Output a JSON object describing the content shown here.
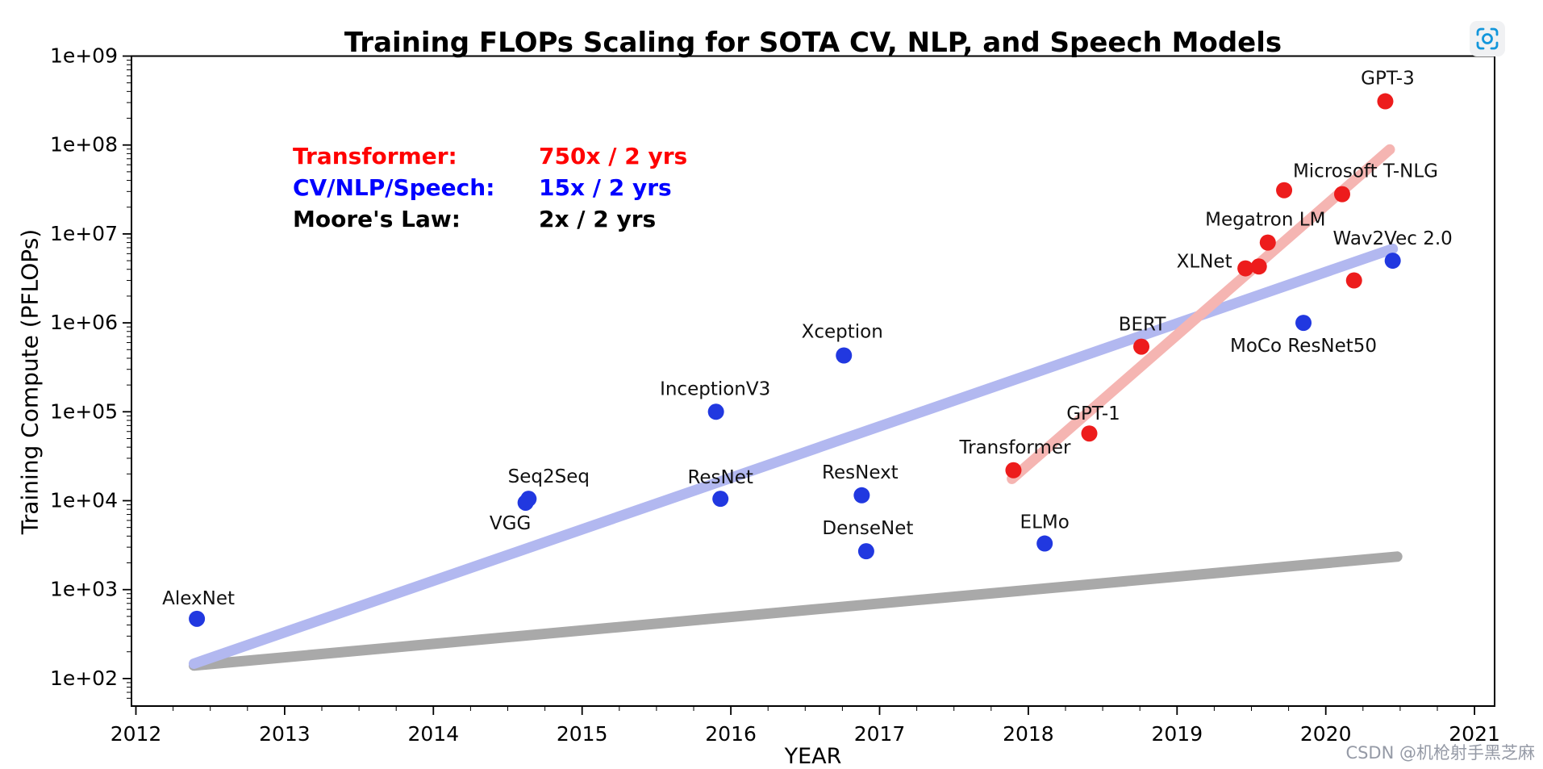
{
  "page": {
    "background": "#ffffff",
    "watermark": "CSDN @机枪射手黑芝麻",
    "watermark_color": "#959aa6",
    "zoom_icon_color": "#1296db"
  },
  "chart_data": {
    "type": "scatter",
    "title": "Training FLOPs Scaling for SOTA CV, NLP, and Speech Models",
    "xlabel": "YEAR",
    "ylabel": "Training Compute (PFLOPs)",
    "grid": false,
    "x_axis": {
      "min": 2011.97,
      "max": 2021.13,
      "minor_step": 0.25,
      "ticks": [
        {
          "year": 2012,
          "label": "2012"
        },
        {
          "year": 2013,
          "label": "2013"
        },
        {
          "year": 2014,
          "label": "2014"
        },
        {
          "year": 2015,
          "label": "2015"
        },
        {
          "year": 2016,
          "label": "2016"
        },
        {
          "year": 2017,
          "label": "2017"
        },
        {
          "year": 2018,
          "label": "2018"
        },
        {
          "year": 2019,
          "label": "2019"
        },
        {
          "year": 2020,
          "label": "2020"
        },
        {
          "year": 2021,
          "label": "2021"
        }
      ]
    },
    "y_axis": {
      "scale": "log",
      "min_exp": 2,
      "max_exp": 9,
      "ticks": [
        {
          "exp": 9,
          "label": "1e+09"
        },
        {
          "exp": 8,
          "label": "1e+08"
        },
        {
          "exp": 7,
          "label": "1e+07"
        },
        {
          "exp": 6,
          "label": "1e+06"
        },
        {
          "exp": 5,
          "label": "1e+05"
        },
        {
          "exp": 4,
          "label": "1e+04"
        },
        {
          "exp": 3,
          "label": "1e+03"
        },
        {
          "exp": 2,
          "label": "1e+02"
        }
      ]
    },
    "legend": {
      "position": "upper-left-inside",
      "rows": [
        {
          "label": "Transformer:",
          "value": "750x / 2 yrs",
          "color": "#ff0000"
        },
        {
          "label": "CV/NLP/Speech:",
          "value": "15x / 2 yrs",
          "color": "#0000ff"
        },
        {
          "label": "Moore's Law:",
          "value": "2x / 2 yrs",
          "color": "#000000"
        }
      ]
    },
    "trend_lines": [
      {
        "name": "moores-law",
        "rate": "2x / 2 yrs",
        "color": "#a9a9a9",
        "points": [
          [
            2012.39,
            140
          ],
          [
            2020.48,
            2350
          ]
        ]
      },
      {
        "name": "cv-nlp-speech",
        "rate": "15x / 2 yrs",
        "color": "#b2b8f0",
        "points": [
          [
            2012.39,
            147
          ],
          [
            2020.45,
            6800000
          ]
        ]
      },
      {
        "name": "transformer",
        "rate": "750x / 2 yrs",
        "color": "#f5b5b2",
        "points": [
          [
            2017.89,
            17600
          ],
          [
            2020.43,
            89000000
          ]
        ]
      }
    ],
    "series": [
      {
        "name": "CV/NLP/Speech",
        "color": "#2138e0",
        "points": [
          {
            "label": "AlexNet",
            "year": 2012.41,
            "pflops": 470,
            "label_dx": 2,
            "label_dy": -26
          },
          {
            "label": "VGG",
            "year": 2014.62,
            "pflops": 9500,
            "label_dx": -19,
            "label_dy": 25
          },
          {
            "label": "Seq2Seq",
            "year": 2014.64,
            "pflops": 10500,
            "label_dx": 25,
            "label_dy": -28
          },
          {
            "label": "InceptionV3",
            "year": 2015.9,
            "pflops": 100000,
            "label_dx": -1,
            "label_dy": -29
          },
          {
            "label": "ResNet",
            "year": 2015.93,
            "pflops": 10500,
            "label_dx": 0,
            "label_dy": -27
          },
          {
            "label": "Xception",
            "year": 2016.76,
            "pflops": 430000,
            "label_dx": -2,
            "label_dy": -30
          },
          {
            "label": "ResNext",
            "year": 2016.88,
            "pflops": 11500,
            "label_dx": -2,
            "label_dy": -29
          },
          {
            "label": "DenseNet",
            "year": 2016.91,
            "pflops": 2700,
            "label_dx": 2,
            "label_dy": -29
          },
          {
            "label": "ELMo",
            "year": 2018.11,
            "pflops": 3300,
            "label_dx": 0,
            "label_dy": -27
          },
          {
            "label": "MoCo ResNet50",
            "year": 2019.85,
            "pflops": 1000000,
            "label_dx": 0,
            "label_dy": 28
          },
          {
            "label": "Wav2Vec 2.0",
            "year": 2020.45,
            "pflops": 5000000,
            "label_dx": 0,
            "label_dy": -28
          }
        ]
      },
      {
        "name": "Transformer",
        "color": "#ed1c1c",
        "points": [
          {
            "label": "Transformer",
            "year": 2017.9,
            "pflops": 22000,
            "label_dx": 2,
            "label_dy": -29
          },
          {
            "label": "GPT-1",
            "year": 2018.41,
            "pflops": 57000,
            "label_dx": 5,
            "label_dy": -25
          },
          {
            "label": "BERT",
            "year": 2018.76,
            "pflops": 540000,
            "label_dx": 1,
            "label_dy": -28
          },
          {
            "label": "XLNet",
            "year": 2019.46,
            "pflops": 4100000,
            "label_dx": -51,
            "label_dy": -9
          },
          {
            "label": "",
            "year": 2019.55,
            "pflops": 4300000
          },
          {
            "label": "Megatron LM",
            "year": 2019.61,
            "pflops": 8000000,
            "label_dx": -3,
            "label_dy": -29
          },
          {
            "label": "",
            "year": 2019.72,
            "pflops": 31000000
          },
          {
            "label": "Microsoft T-NLG",
            "year": 2020.11,
            "pflops": 28000000,
            "label_dx": 29,
            "label_dy": -29
          },
          {
            "label": "",
            "year": 2020.19,
            "pflops": 3000000
          },
          {
            "label": "GPT-3",
            "year": 2020.4,
            "pflops": 310000000,
            "label_dx": 3,
            "label_dy": -29
          }
        ]
      }
    ]
  }
}
